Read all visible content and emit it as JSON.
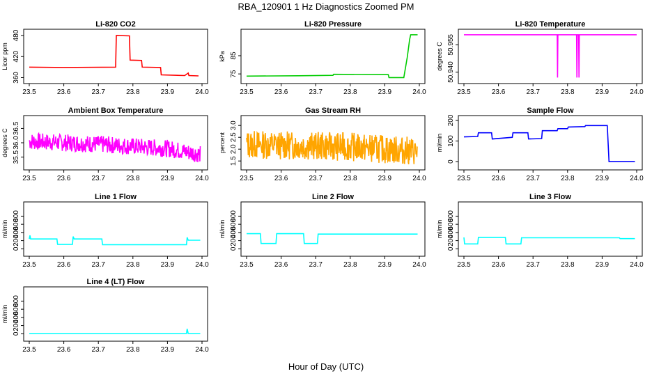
{
  "page": {
    "title": "RBA_120901  1 Hz Diagnostics Zoomed PM",
    "xlabel": "Hour of Day (UTC)"
  },
  "chart_data": [
    {
      "type": "line",
      "title": "Li-820 CO2",
      "ylabel": "Licor ppm",
      "color": "#ff0000",
      "xlim": [
        23.5,
        24.0
      ],
      "ylim": [
        355,
        490
      ],
      "xticks": [
        "23.5",
        "23.6",
        "23.7",
        "23.8",
        "23.9",
        "24.0"
      ],
      "yticks": [
        "360",
        "420",
        "480"
      ],
      "series": [
        {
          "segments": [
            [
              23.5,
              390
            ],
            [
              23.6,
              389
            ],
            [
              23.75,
              390
            ],
            [
              23.752,
              480
            ],
            [
              23.79,
              479
            ],
            [
              23.792,
              410
            ],
            [
              23.825,
              409
            ],
            [
              23.827,
              390
            ],
            [
              23.88,
              389
            ],
            [
              23.882,
              368
            ],
            [
              23.95,
              366
            ],
            [
              23.96,
              373
            ],
            [
              23.962,
              366
            ],
            [
              23.99,
              365
            ]
          ]
        }
      ]
    },
    {
      "type": "line",
      "title": "Li-820 Pressure",
      "ylabel": "kPa",
      "color": "#00cc00",
      "xlim": [
        23.5,
        24.0
      ],
      "ylim": [
        72,
        98
      ],
      "xticks": [
        "23.5",
        "23.6",
        "23.7",
        "23.8",
        "23.9",
        "24.0"
      ],
      "yticks": [
        "75",
        "85"
      ],
      "series": [
        {
          "segments": [
            [
              23.5,
              73.8
            ],
            [
              23.65,
              74.0
            ],
            [
              23.75,
              74.2
            ],
            [
              23.752,
              74.8
            ],
            [
              23.91,
              74.6
            ],
            [
              23.912,
              73.0
            ],
            [
              23.955,
              73.0
            ],
            [
              23.965,
              84.0
            ],
            [
              23.972,
              94.0
            ],
            [
              23.975,
              96.5
            ],
            [
              23.995,
              96.5
            ]
          ]
        }
      ]
    },
    {
      "type": "line",
      "title": "Li-820 Temperature",
      "ylabel": "degrees C",
      "color": "#ff00ff",
      "xlim": [
        23.5,
        24.0
      ],
      "ylim": [
        50.936,
        50.962
      ],
      "xticks": [
        "23.5",
        "23.6",
        "23.7",
        "23.8",
        "23.9",
        "24.0"
      ],
      "yticks": [
        "50.940",
        "50.955"
      ],
      "series": [
        {
          "segments": [
            [
              23.5,
              50.9605
            ],
            [
              23.77,
              50.9605
            ],
            [
              23.771,
              50.937
            ],
            [
              23.772,
              50.9605
            ],
            [
              23.826,
              50.9605
            ],
            [
              23.827,
              50.937
            ],
            [
              23.828,
              50.9605
            ],
            [
              23.832,
              50.9605
            ],
            [
              23.833,
              50.937
            ],
            [
              23.834,
              50.9605
            ],
            [
              24.0,
              50.9605
            ]
          ]
        }
      ]
    },
    {
      "type": "line",
      "title": "Ambient Box Temperature",
      "ylabel": "degrees C",
      "color": "#ff00ff",
      "xlim": [
        23.5,
        24.0
      ],
      "ylim": [
        35.2,
        36.85
      ],
      "xticks": [
        "23.5",
        "23.6",
        "23.7",
        "23.8",
        "23.9",
        "24.0"
      ],
      "yticks": [
        "35.5",
        "36.0",
        "36.5"
      ],
      "series": [
        {
          "noise": {
            "x0": 23.5,
            "x1": 23.995,
            "trend": [
              [
                23.5,
                36.05
              ],
              [
                23.7,
                35.95
              ],
              [
                23.9,
                35.8
              ],
              [
                23.995,
                35.6
              ]
            ],
            "amp": 0.3,
            "n": 420,
            "seed": 7
          }
        }
      ]
    },
    {
      "type": "line",
      "title": "Gas Stream RH",
      "ylabel": "percent",
      "color": "#ffa500",
      "xlim": [
        23.5,
        24.0
      ],
      "ylim": [
        1.3,
        3.3
      ],
      "xticks": [
        "23.5",
        "23.6",
        "23.7",
        "23.8",
        "23.9",
        "24.0"
      ],
      "yticks": [
        "1.5",
        "2.0",
        "2.5",
        "3.0"
      ],
      "series": [
        {
          "noise": {
            "x0": 23.5,
            "x1": 23.995,
            "trend": [
              [
                23.5,
                2.2
              ],
              [
                23.8,
                2.1
              ],
              [
                23.9,
                2.0
              ],
              [
                23.995,
                1.9
              ]
            ],
            "amp": 0.6,
            "n": 420,
            "seed": 13
          }
        }
      ]
    },
    {
      "type": "line",
      "title": "Sample Flow",
      "ylabel": "ml/min",
      "color": "#0000ff",
      "xlim": [
        23.5,
        24.0
      ],
      "ylim": [
        -20,
        210
      ],
      "xticks": [
        "23.5",
        "23.6",
        "23.7",
        "23.8",
        "23.9",
        "24.0"
      ],
      "yticks": [
        "0",
        "100",
        "200"
      ],
      "series": [
        {
          "segments": [
            [
              23.5,
              120
            ],
            [
              23.54,
              122
            ],
            [
              23.542,
              140
            ],
            [
              23.58,
              140
            ],
            [
              23.582,
              110
            ],
            [
              23.64,
              118
            ],
            [
              23.642,
              140
            ],
            [
              23.685,
              140
            ],
            [
              23.687,
              110
            ],
            [
              23.725,
              112
            ],
            [
              23.727,
              150
            ],
            [
              23.77,
              150
            ],
            [
              23.772,
              160
            ],
            [
              23.8,
              160
            ],
            [
              23.802,
              168
            ],
            [
              23.85,
              170
            ],
            [
              23.852,
              175
            ],
            [
              23.915,
              175
            ],
            [
              23.92,
              0
            ],
            [
              23.995,
              0
            ]
          ]
        }
      ]
    },
    {
      "type": "line",
      "title": "Line 1 Flow",
      "ylabel": "ml/min",
      "color": "#00ffff",
      "xlim": [
        23.5,
        24.0
      ],
      "ylim": [
        -80,
        1080
      ],
      "xticks": [
        "23.5",
        "23.6",
        "23.7",
        "23.8",
        "23.9",
        "24.0"
      ],
      "yticks": [
        "0",
        "200",
        "400",
        "600",
        "800"
      ],
      "series": [
        {
          "segments": [
            [
              23.5,
              240
            ],
            [
              23.502,
              330
            ],
            [
              23.504,
              240
            ],
            [
              23.58,
              240
            ],
            [
              23.582,
              110
            ],
            [
              23.625,
              110
            ],
            [
              23.627,
              300
            ],
            [
              23.63,
              240
            ],
            [
              23.71,
              240
            ],
            [
              23.712,
              100
            ],
            [
              23.955,
              100
            ],
            [
              23.957,
              280
            ],
            [
              23.96,
              210
            ],
            [
              23.995,
              210
            ]
          ]
        }
      ]
    },
    {
      "type": "line",
      "title": "Line 2 Flow",
      "ylabel": "ml/min",
      "color": "#00ffff",
      "xlim": [
        23.5,
        24.0
      ],
      "ylim": [
        -80,
        1080
      ],
      "xticks": [
        "23.5",
        "23.6",
        "23.7",
        "23.8",
        "23.9",
        "24.0"
      ],
      "yticks": [
        "0",
        "200",
        "400",
        "600",
        "800"
      ],
      "series": [
        {
          "segments": [
            [
              23.5,
              370
            ],
            [
              23.54,
              370
            ],
            [
              23.542,
              130
            ],
            [
              23.585,
              130
            ],
            [
              23.587,
              370
            ],
            [
              23.665,
              370
            ],
            [
              23.667,
              130
            ],
            [
              23.705,
              130
            ],
            [
              23.707,
              360
            ],
            [
              23.995,
              360
            ]
          ]
        }
      ]
    },
    {
      "type": "line",
      "title": "Line 3 Flow",
      "ylabel": "ml/min",
      "color": "#00ffff",
      "xlim": [
        23.5,
        24.0
      ],
      "ylim": [
        -80,
        1080
      ],
      "xticks": [
        "23.5",
        "23.6",
        "23.7",
        "23.8",
        "23.9",
        "24.0"
      ],
      "yticks": [
        "0",
        "200",
        "400",
        "600",
        "800"
      ],
      "series": [
        {
          "segments": [
            [
              23.5,
              280
            ],
            [
              23.502,
              120
            ],
            [
              23.54,
              120
            ],
            [
              23.542,
              280
            ],
            [
              23.62,
              280
            ],
            [
              23.622,
              120
            ],
            [
              23.665,
              120
            ],
            [
              23.667,
              270
            ],
            [
              23.95,
              270
            ],
            [
              23.952,
              250
            ],
            [
              23.995,
              250
            ]
          ]
        }
      ]
    },
    {
      "type": "line",
      "title": "Line 4 (LT) Flow",
      "ylabel": "ml/min",
      "color": "#00ffff",
      "xlim": [
        23.5,
        24.0
      ],
      "ylim": [
        -80,
        1080
      ],
      "xticks": [
        "23.5",
        "23.6",
        "23.7",
        "23.8",
        "23.9",
        "24.0"
      ],
      "yticks": [
        "0",
        "200",
        "400",
        "600",
        "800"
      ],
      "series": [
        {
          "segments": [
            [
              23.5,
              5
            ],
            [
              23.955,
              5
            ],
            [
              23.957,
              120
            ],
            [
              23.96,
              5
            ],
            [
              23.995,
              5
            ]
          ]
        }
      ]
    }
  ]
}
